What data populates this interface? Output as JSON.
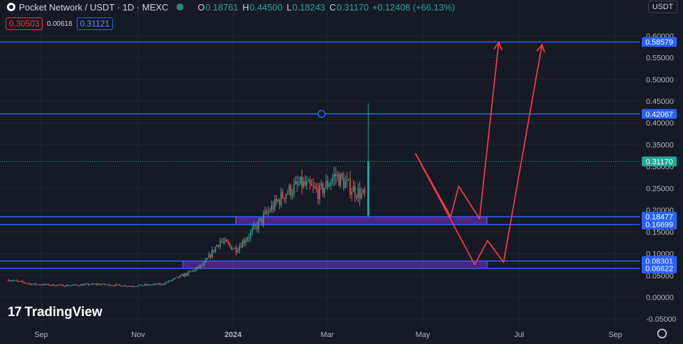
{
  "header": {
    "title": "Pocket Network / USDT · 1D · MEXC",
    "ohlc": [
      {
        "k": "O",
        "v": "0.18761"
      },
      {
        "k": "H",
        "v": "0.44500"
      },
      {
        "k": "L",
        "v": "0.18243"
      },
      {
        "k": "C",
        "v": "0.31170"
      }
    ],
    "change": "+0.12408 (+66.13%)"
  },
  "prices": {
    "sell": "0.30503",
    "spread": "0.00618",
    "buy": "0.31121"
  },
  "currency": "USDT",
  "brand": "TradingView",
  "colors": {
    "bg": "#161a25",
    "up": "#26a69a",
    "down": "#ef5350",
    "level": "#2962ff",
    "zone": "#7b2fc9",
    "arrow": "#f23645"
  },
  "chart_data": {
    "type": "candlestick",
    "y_ticks": [
      "0.60000",
      "0.55000",
      "0.50000",
      "0.45000",
      "0.40000",
      "0.35000",
      "0.30000",
      "0.25000",
      "0.20000",
      "0.15000",
      "0.10000",
      "0.05000",
      "0.00000",
      "-0.05000"
    ],
    "x_ticks": [
      "Sep",
      "Nov",
      "2024",
      "Mar",
      "May",
      "Jul",
      "Sep"
    ],
    "last_price": "0.31170",
    "levels": [
      {
        "label": "0.58579",
        "value": 0.58579
      },
      {
        "label": "0.42067",
        "value": 0.42067
      },
      {
        "label": "0.18477",
        "value": 0.18477
      },
      {
        "label": "0.16699",
        "value": 0.16699
      },
      {
        "label": "0.08301",
        "value": 0.08301
      },
      {
        "label": "0.06622",
        "value": 0.06622
      }
    ],
    "zones": [
      {
        "from_date": "2024-01-10",
        "to_date": "2024-06-28",
        "low": 0.16699,
        "high": 0.18477
      },
      {
        "from_date": "2023-11-25",
        "to_date": "2024-06-28",
        "low": 0.06622,
        "high": 0.08301
      }
    ],
    "price_path": [
      [
        "2023-07-26",
        0.04
      ],
      [
        "2023-08-10",
        0.03
      ],
      [
        "2023-08-30",
        0.027
      ],
      [
        "2023-09-20",
        0.03
      ],
      [
        "2023-10-10",
        0.026
      ],
      [
        "2023-10-30",
        0.03
      ],
      [
        "2023-11-15",
        0.055
      ],
      [
        "2023-11-25",
        0.075
      ],
      [
        "2023-12-05",
        0.13
      ],
      [
        "2023-12-15",
        0.11
      ],
      [
        "2023-12-25",
        0.15
      ],
      [
        "2024-01-05",
        0.2
      ],
      [
        "2024-01-15",
        0.24
      ],
      [
        "2024-01-25",
        0.26
      ],
      [
        "2024-02-05",
        0.24
      ],
      [
        "2024-02-15",
        0.28
      ],
      [
        "2024-02-25",
        0.25
      ],
      [
        "2024-03-05",
        0.23
      ],
      [
        "2024-03-15",
        0.21
      ],
      [
        "2024-03-25",
        0.19
      ],
      [
        "2024-04-02",
        0.2
      ],
      [
        "2024-04-05",
        0.3117
      ]
    ],
    "projections": [
      {
        "points": [
          [
            "2024-04-05",
            0.33
          ],
          [
            "2024-04-27",
            0.185
          ],
          [
            "2024-05-02",
            0.255
          ],
          [
            "2024-05-15",
            0.18
          ],
          [
            "2024-05-27",
            0.585
          ]
        ]
      },
      {
        "points": [
          [
            "2024-04-05",
            0.33
          ],
          [
            "2024-05-12",
            0.075
          ],
          [
            "2024-05-20",
            0.13
          ],
          [
            "2024-05-30",
            0.08
          ],
          [
            "2024-06-23",
            0.58
          ]
        ]
      }
    ]
  }
}
